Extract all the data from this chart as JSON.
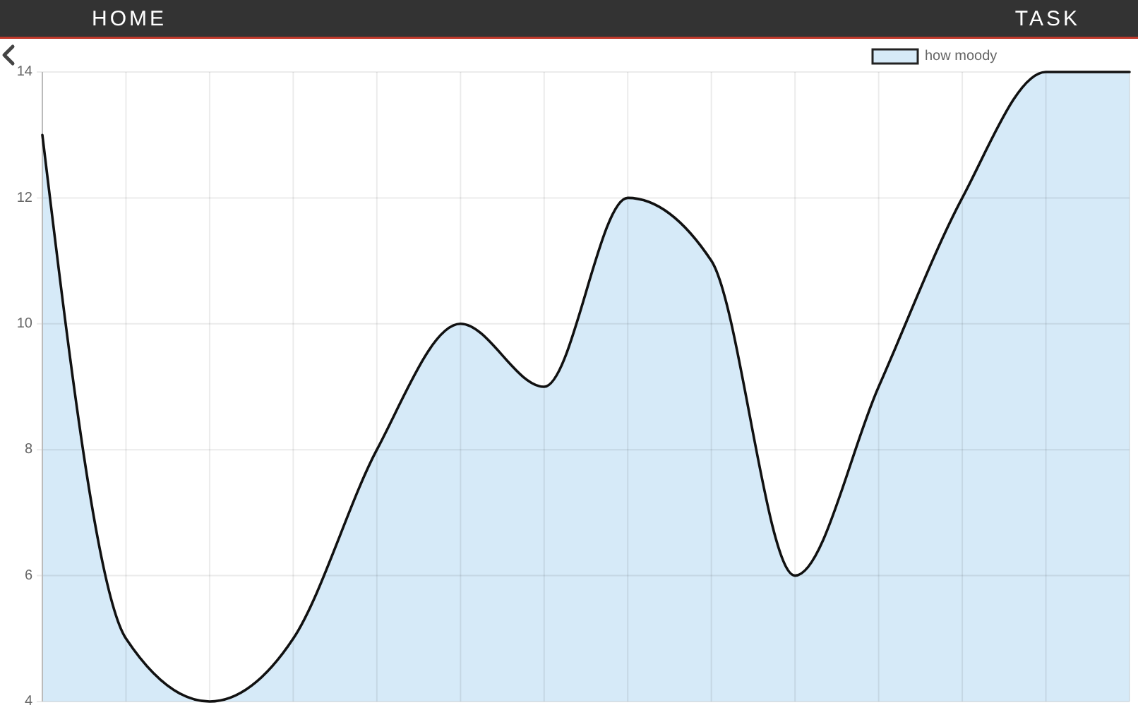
{
  "chart_data": {
    "type": "area",
    "categories": [
      null,
      null,
      null,
      null,
      null,
      null,
      null,
      null,
      null,
      null,
      null,
      null,
      null,
      null
    ],
    "series": [
      {
        "name": "how moody",
        "color": "#d6eaf8",
        "values": [
          13,
          5,
          4,
          5,
          8,
          10,
          9,
          12,
          11,
          6,
          9,
          12,
          14,
          14
        ]
      }
    ],
    "ylim": [
      4,
      14
    ],
    "yticks": [
      4,
      6,
      8,
      10,
      12,
      14
    ],
    "grid": true,
    "legend": "top right",
    "tick_labels": "y",
    "annotations": [
      "HOME",
      "TASK"
    ]
  }
}
